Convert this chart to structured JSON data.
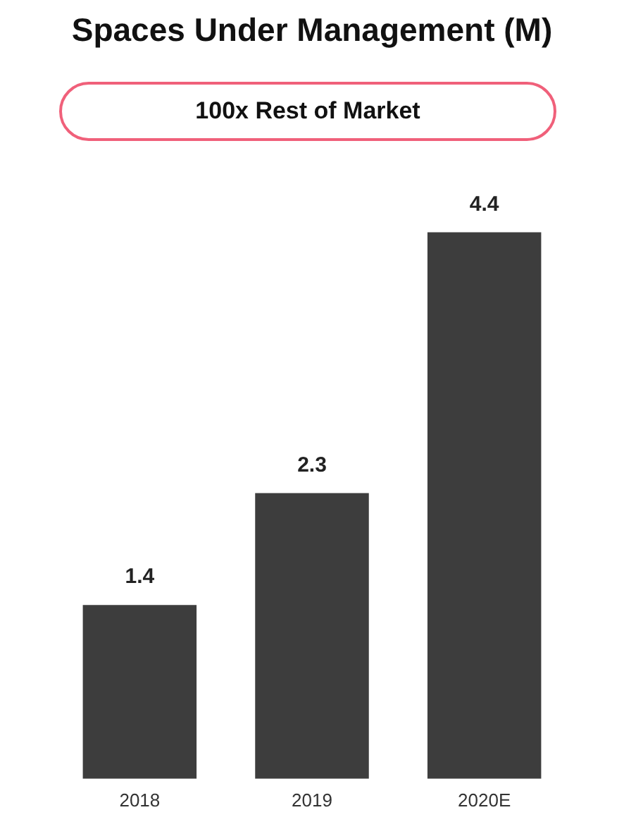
{
  "chart_data": {
    "type": "bar",
    "title": "Spaces Under Management (M)",
    "subtitle": "100x Rest of Market",
    "categories": [
      "2018",
      "2019",
      "2020E"
    ],
    "values": [
      1.4,
      2.3,
      4.4
    ],
    "color": "#3d3d3d",
    "data_labels": true,
    "grid": false,
    "legend": false,
    "tick_labels": "x"
  }
}
